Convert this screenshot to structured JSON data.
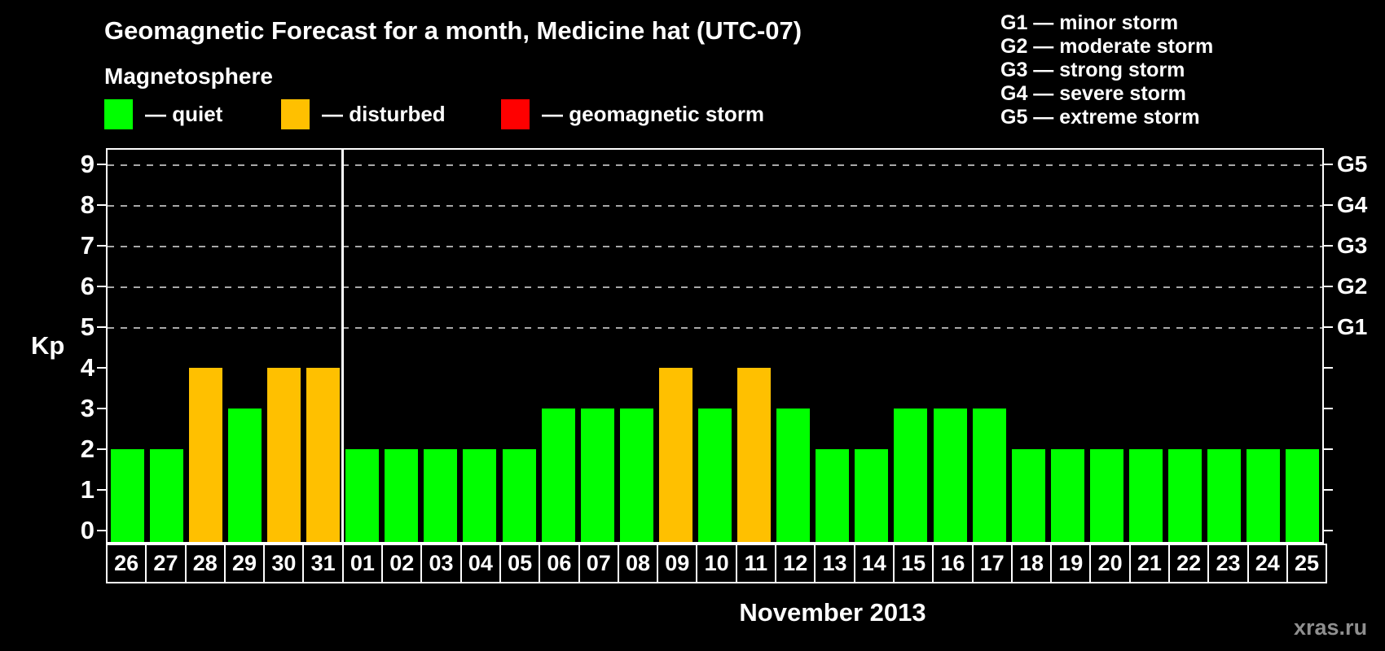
{
  "header": {
    "title": "Geomagnetic Forecast for a month, Medicine hat (UTC-07)"
  },
  "magnetosphere_legend": {
    "heading": "Magnetosphere",
    "items": [
      {
        "key": "quiet",
        "label": "— quiet",
        "color": "#00ff00"
      },
      {
        "key": "disturbed",
        "label": "— disturbed",
        "color": "#ffc000"
      },
      {
        "key": "storm",
        "label": "— geomagnetic storm",
        "color": "#ff0000"
      }
    ]
  },
  "storm_scale_legend": {
    "items": [
      "G1 — minor storm",
      "G2 — moderate storm",
      "G3 — strong storm",
      "G4 — severe storm",
      "G5 — extreme storm"
    ]
  },
  "footer": {
    "month_label": "November 2013",
    "watermark": "xras.ru"
  },
  "chart_data": {
    "type": "bar",
    "title": "Geomagnetic Forecast for a month, Medicine hat (UTC-07)",
    "ylabel": "Kp",
    "xlabel": "November 2013",
    "ylim": [
      0,
      9.4
    ],
    "y_ticks": [
      0,
      1,
      2,
      3,
      4,
      5,
      6,
      7,
      8,
      9
    ],
    "grid_levels": [
      5,
      6,
      7,
      8,
      9
    ],
    "grid": "dashed horizontal lines at storm levels only",
    "legend_position": "top-left",
    "categories": [
      "26",
      "27",
      "28",
      "29",
      "30",
      "31",
      "01",
      "02",
      "03",
      "04",
      "05",
      "06",
      "07",
      "08",
      "09",
      "10",
      "11",
      "12",
      "13",
      "14",
      "15",
      "16",
      "17",
      "18",
      "19",
      "20",
      "21",
      "22",
      "23",
      "24",
      "25"
    ],
    "values": [
      2,
      2,
      4,
      3,
      4,
      4,
      2,
      2,
      2,
      2,
      2,
      3,
      3,
      3,
      4,
      3,
      4,
      3,
      2,
      2,
      3,
      3,
      3,
      2,
      2,
      2,
      2,
      2,
      2,
      2,
      2
    ],
    "states": [
      "quiet",
      "quiet",
      "disturbed",
      "quiet",
      "disturbed",
      "disturbed",
      "quiet",
      "quiet",
      "quiet",
      "quiet",
      "quiet",
      "quiet",
      "quiet",
      "quiet",
      "disturbed",
      "quiet",
      "disturbed",
      "quiet",
      "quiet",
      "quiet",
      "quiet",
      "quiet",
      "quiet",
      "quiet",
      "quiet",
      "quiet",
      "quiet",
      "quiet",
      "quiet",
      "quiet",
      "quiet"
    ],
    "month_boundary_after_index": 5,
    "right_axis_labels": [
      {
        "label": "G5",
        "kp": 9
      },
      {
        "label": "G4",
        "kp": 8
      },
      {
        "label": "G3",
        "kp": 7
      },
      {
        "label": "G2",
        "kp": 6
      },
      {
        "label": "G1",
        "kp": 5
      }
    ],
    "colors": {
      "quiet": "#00ff00",
      "disturbed": "#ffc000",
      "storm": "#ff0000"
    }
  }
}
